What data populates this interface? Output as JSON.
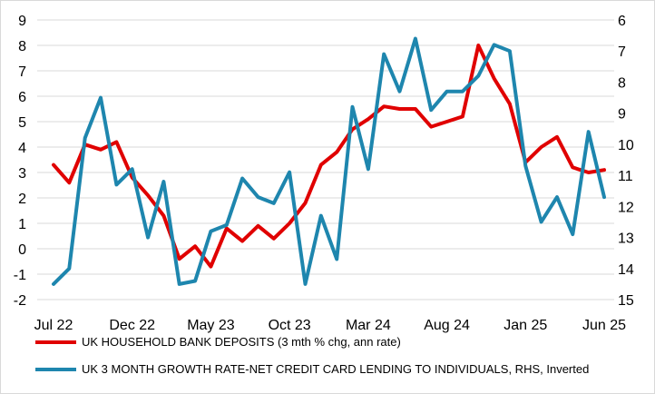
{
  "chart_data": {
    "type": "line",
    "x": [
      "Jul 22",
      "Aug 22",
      "Sep 22",
      "Oct 22",
      "Nov 22",
      "Dec 22",
      "Jan 23",
      "Feb 23",
      "Mar 23",
      "Apr 23",
      "May 23",
      "Jun 23",
      "Jul 23",
      "Aug 23",
      "Sep 23",
      "Oct 23",
      "Nov 23",
      "Dec 23",
      "Jan 24",
      "Feb 24",
      "Mar 24",
      "Apr 24",
      "May 24",
      "Jun 24",
      "Jul 24",
      "Aug 24",
      "Sep 24",
      "Oct 24",
      "Nov 24",
      "Dec 24",
      "Jan 25",
      "Feb 25",
      "Mar 25",
      "Apr 25",
      "May 25",
      "Jun 25"
    ],
    "x_tick_labels": [
      "Jul 22",
      "Dec 22",
      "May 23",
      "Oct 23",
      "Mar 24",
      "Aug 24",
      "Jan 25",
      "Jun 25"
    ],
    "y_left": {
      "ylim": [
        -2,
        9
      ],
      "ticks": [
        "-2",
        "-1",
        "0",
        "1",
        "2",
        "3",
        "4",
        "5",
        "6",
        "7",
        "8",
        "9"
      ]
    },
    "y_right": {
      "ylim": [
        6,
        15
      ],
      "inverted": true,
      "ticks": [
        "6",
        "7",
        "8",
        "9",
        "10",
        "11",
        "12",
        "13",
        "14",
        "15"
      ]
    },
    "grid": "horizontal",
    "legend_position": "bottom",
    "series": [
      {
        "name": "UK HOUSEHOLD BANK DEPOSITS (3 mth % chg, ann rate)",
        "axis": "left",
        "color": "#e00000",
        "values": [
          3.3,
          2.6,
          4.1,
          3.9,
          4.2,
          2.8,
          2.1,
          1.3,
          -0.4,
          0.1,
          -0.7,
          0.8,
          0.3,
          0.9,
          0.4,
          1.0,
          1.8,
          3.3,
          3.8,
          4.7,
          5.1,
          5.6,
          5.5,
          5.5,
          4.8,
          5.0,
          5.2,
          8.0,
          6.7,
          5.7,
          3.4,
          4.0,
          4.4,
          3.2,
          3.0,
          3.1
        ]
      },
      {
        "name": "UK 3 MONTH GROWTH RATE-NET CREDIT CARD LENDING TO INDIVIDUALS, RHS, Inverted",
        "axis": "right",
        "color": "#1e86ae",
        "values": [
          14.5,
          14.0,
          9.8,
          8.5,
          11.3,
          10.8,
          13.0,
          11.2,
          14.5,
          14.4,
          12.8,
          12.6,
          11.1,
          11.7,
          11.9,
          10.9,
          14.5,
          12.3,
          13.7,
          8.8,
          10.8,
          7.1,
          8.3,
          6.6,
          8.9,
          8.3,
          8.3,
          7.8,
          6.8,
          7.0,
          10.7,
          12.5,
          11.7,
          12.9,
          9.6,
          11.7
        ]
      }
    ]
  }
}
